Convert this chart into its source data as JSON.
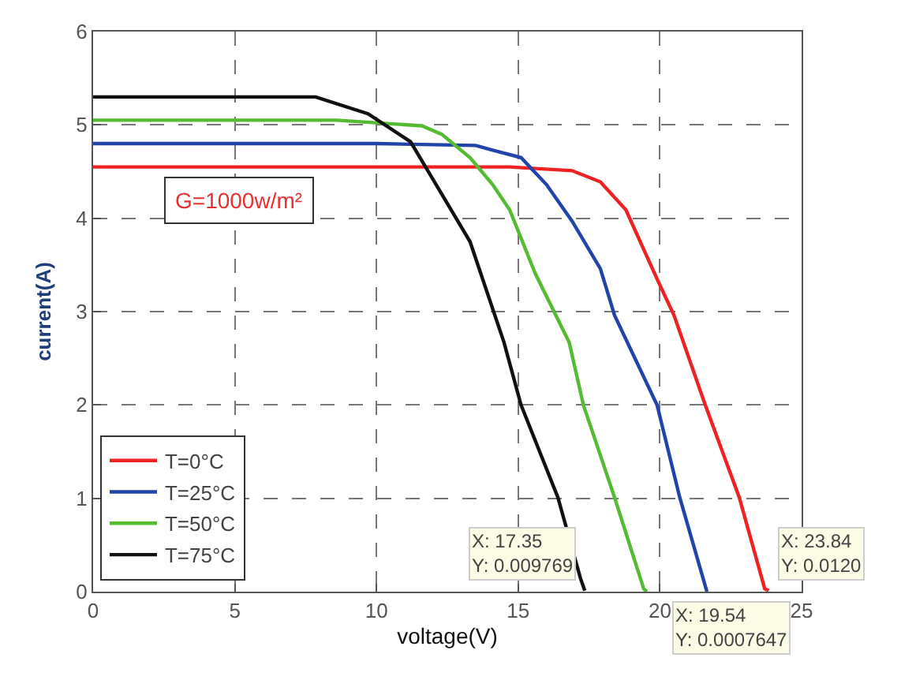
{
  "chart_data": {
    "type": "line",
    "xlabel": "voltage(V)",
    "ylabel": "current(A)",
    "xlim": [
      0,
      25
    ],
    "ylim": [
      0,
      6
    ],
    "xticks": [
      0,
      5,
      10,
      15,
      20,
      25
    ],
    "yticks": [
      0,
      1,
      2,
      3,
      4,
      5,
      6
    ],
    "grid": true,
    "legend": "bottom left",
    "line_style": "solid",
    "marker": "none",
    "series": [
      {
        "name": "T=0°C",
        "color": "#ee2222",
        "x": [
          0,
          5,
          10,
          14.7,
          16.9,
          17.9,
          18.8,
          19.9,
          20.5,
          21.6,
          22.8,
          23.7,
          23.84
        ],
        "values": [
          4.55,
          4.55,
          4.55,
          4.55,
          4.51,
          4.39,
          4.09,
          3.35,
          2.96,
          2.0,
          1.01,
          0.03,
          0.012
        ]
      },
      {
        "name": "T=25°C",
        "color": "#2244aa",
        "x": [
          0,
          5,
          10,
          13.5,
          14.1,
          15.1,
          16.0,
          16.9,
          17.9,
          18.4,
          19.9,
          20.7,
          21.66
        ],
        "values": [
          4.8,
          4.8,
          4.8,
          4.78,
          4.73,
          4.65,
          4.36,
          3.97,
          3.46,
          2.96,
          2.0,
          1.01,
          0
        ]
      },
      {
        "name": "T=50°C",
        "color": "#55bb33",
        "x": [
          0,
          5,
          8.6,
          11.6,
          12.3,
          13.3,
          14.1,
          14.7,
          15.6,
          16.8,
          17.3,
          18.4,
          19.43,
          19.54
        ],
        "values": [
          5.05,
          5.05,
          5.05,
          4.99,
          4.9,
          4.65,
          4.36,
          4.09,
          3.41,
          2.67,
          2.0,
          1.01,
          0.03,
          0.0007647
        ]
      },
      {
        "name": "T=75°C",
        "color": "#111111",
        "x": [
          0,
          5,
          7.85,
          9.7,
          11.2,
          12.3,
          13.3,
          14.5,
          15.1,
          16.4,
          17.2,
          17.35
        ],
        "values": [
          5.3,
          5.3,
          5.3,
          5.12,
          4.82,
          4.26,
          3.75,
          2.67,
          2.0,
          1.01,
          0.14,
          0.009769
        ]
      }
    ],
    "annotations": [
      "G=1000w/m²",
      {
        "text": "X: 17.35\nY: 0.009769",
        "x": 17.35,
        "y": 0.009769
      },
      {
        "text": "X: 19.54\nY: 0.0007647",
        "x": 19.54,
        "y": 0.0007647
      },
      {
        "text": "X: 23.84\nY: 0.0120",
        "x": 23.84,
        "y": 0.012
      }
    ]
  }
}
